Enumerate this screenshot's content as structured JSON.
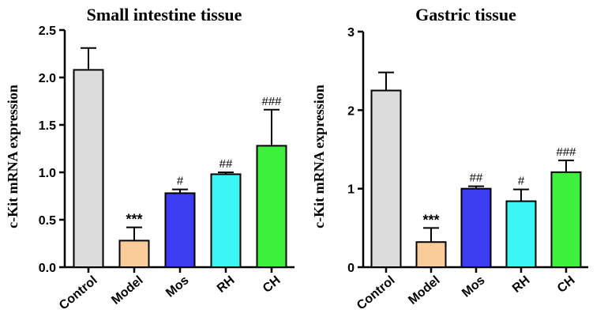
{
  "chart_data": [
    {
      "type": "bar",
      "title": "Small intestine tissue",
      "xlabel": "",
      "ylabel": "c-Kit mRNA expression",
      "ylim": [
        0,
        2.5
      ],
      "yticks": [
        "0.0",
        "0.5",
        "1.0",
        "1.5",
        "2.0",
        "2.5"
      ],
      "categories": [
        "Control",
        "Model",
        "Mos",
        "RH",
        "CH"
      ],
      "values": [
        2.08,
        0.28,
        0.78,
        0.98,
        1.28
      ],
      "errors": [
        0.23,
        0.14,
        0.04,
        0.02,
        0.38
      ],
      "colors": [
        "#dcdcdc",
        "#f9cc9a",
        "#3c3cf0",
        "#3cf5f5",
        "#3cf03c"
      ],
      "annotations": [
        "",
        "***",
        "#",
        "##",
        "###"
      ]
    },
    {
      "type": "bar",
      "title": "Gastric tissue",
      "xlabel": "",
      "ylabel": "c-Kit mRNA expression",
      "ylim": [
        0,
        3
      ],
      "yticks": [
        "0",
        "1",
        "2",
        "3"
      ],
      "categories": [
        "Control",
        "Model",
        "Mos",
        "RH",
        "CH"
      ],
      "values": [
        2.25,
        0.32,
        1.0,
        0.84,
        1.21
      ],
      "errors": [
        0.23,
        0.18,
        0.03,
        0.15,
        0.15
      ],
      "colors": [
        "#dcdcdc",
        "#f9cc9a",
        "#3c3cf0",
        "#3cf5f5",
        "#3cf03c"
      ],
      "annotations": [
        "",
        "***",
        "##",
        "#",
        "###"
      ]
    }
  ]
}
